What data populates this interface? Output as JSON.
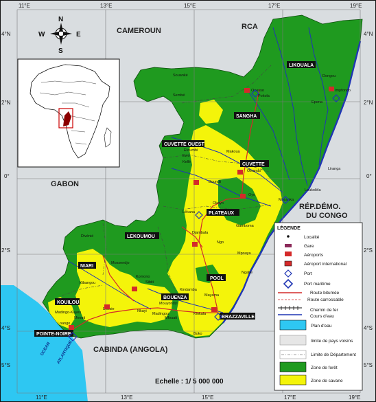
{
  "colors": {
    "foreign_land": "#d9dde0",
    "ocean": "#2ec7f2",
    "forest": "#1f9a1f",
    "savanna": "#f4f40a",
    "river": "#1f35b4",
    "road": "#d42a2a",
    "grid": "#7a7a7a"
  },
  "graticule": {
    "top_labels": [
      "11°E",
      "13°E",
      "15°E",
      "17°E",
      "19°E"
    ],
    "bottom_labels": [
      "11°E",
      "13°E",
      "15°E",
      "17°E",
      "19°E"
    ],
    "left_labels": [
      "4°N",
      "2°N",
      "0°",
      "2°S",
      "4°S",
      "5°S"
    ],
    "right_labels": [
      "4°N",
      "2°N",
      "0°",
      "2°S",
      "4°S",
      "5°S"
    ]
  },
  "compass": {
    "n": "N",
    "s": "S",
    "e": "E",
    "w": "W"
  },
  "countries": {
    "cameroun": "CAMEROUN",
    "rca": "RCA",
    "gabon": "GABON",
    "rdc_line1": "RÉP.DÉMO.",
    "rdc_line2": "DU CONGO",
    "cabinda": "CABINDA (ANGOLA)",
    "ocean_line1": "OCEAN",
    "ocean_line2": "ATLANTIQUE"
  },
  "departments": {
    "likouala": "LIKOUALA",
    "sangha": "SANGHA",
    "cuvette_ouest": "CUVETTE OUEST",
    "cuvette": "CUVETTE",
    "plateaux": "PLATEAUX",
    "lekoumou": "LEKOUMOU",
    "niari": "NIARI",
    "pool": "POOL",
    "bouenza": "BOUENZA",
    "kouilou": "KOUILOU",
    "pointe_noire": "POINTE-NOIRE",
    "brazzaville": "BRAZZAVILLE"
  },
  "towns": {
    "ouesso": "Ouesso",
    "pokola": "Pokola",
    "dongou": "Dongou",
    "impfondo": "Impfondo",
    "epena": "Epena",
    "souanke": "Souanké",
    "sembe": "Sembé",
    "ewo": "Ewo",
    "kelle": "Kellé",
    "etoumbi": "Etoumbi",
    "owando": "Owando",
    "makoua": "Makoua",
    "boundji": "Boundji",
    "oyo": "Oyo",
    "okoyo": "Okoyo",
    "mossaka": "Mossaka",
    "loukolela": "Loukoléla",
    "liranga": "Liranga",
    "djambala": "Djambala",
    "lekana": "Lékana",
    "gamboma": "Gamboma",
    "ngo": "Ngo",
    "mpouya": "Mpouya",
    "ngabe": "Ngabé",
    "divenie": "Divénié",
    "mossendjo": "Mossendjo",
    "komono": "Komono",
    "sibiti": "Sibiti",
    "kibangou": "Kibangou",
    "dolisie": "Dolisie",
    "mouyondzi": "Mouyondzi",
    "madingou": "Madingou",
    "nkayi": "Nkayi",
    "mfouati": "Mfouati",
    "kindamba": "Kindamba",
    "mayama": "Mayama",
    "kinkala": "Kinkala",
    "boko": "Boko",
    "mvouti": "Mvouti",
    "madingo_kayes": "Madingo-Kayes",
    "loango": "Loango"
  },
  "scale": "Echelle : 1/ 5 000 000",
  "legend": {
    "title": "LÉGENDE",
    "items": {
      "localite": "Localité",
      "gare": "Gare",
      "aeroports": "Aéroports",
      "aeroport_international": "Aéroport international",
      "port": "Port",
      "port_maritime": "Port maritime",
      "route_bitumee": "Route bitumée",
      "route_carrossable": "Route carrossable",
      "chemin_de_fer": "Chemin de fer",
      "cours_deau": "Cours d'eau",
      "plan_deau": "Plan d'eau",
      "limite_pays": "limite de pays voisins",
      "limite_departement": "Limite de Département",
      "zone_foret": "Zone de forêt",
      "zone_savane": "Zone de savane"
    }
  }
}
